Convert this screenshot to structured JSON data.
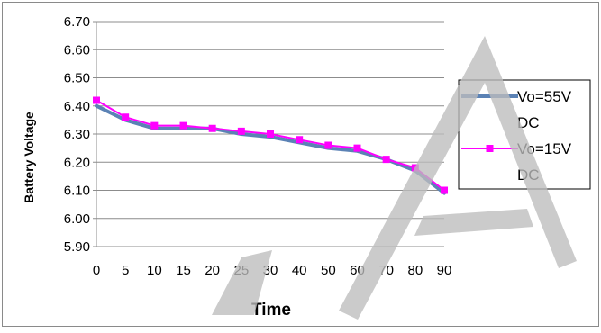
{
  "chart_data": {
    "type": "line",
    "title": "",
    "xlabel": "Time",
    "ylabel": "Battery Voltage",
    "x": [
      "0",
      "5",
      "10",
      "15",
      "20",
      "25",
      "30",
      "40",
      "50",
      "60",
      "70",
      "80",
      "90"
    ],
    "ylim": [
      5.9,
      6.7
    ],
    "yticks": [
      "5.90",
      "6.00",
      "6.10",
      "6.20",
      "6.30",
      "6.40",
      "6.50",
      "6.60",
      "6.70"
    ],
    "grid": true,
    "legend_position": "right",
    "series": [
      {
        "name": "Vo=55V DC",
        "legend_lines": [
          "Vo=55V",
          "DC"
        ],
        "color": "#5b82b5",
        "marker": "none",
        "values": [
          6.4,
          6.35,
          6.32,
          6.32,
          6.32,
          6.3,
          6.29,
          6.27,
          6.25,
          6.24,
          6.21,
          6.17,
          6.09
        ]
      },
      {
        "name": "Vo=15V DC",
        "legend_lines": [
          "Vo=15V",
          "DC"
        ],
        "color": "#ff00ff",
        "marker": "square",
        "values": [
          6.42,
          6.36,
          6.33,
          6.33,
          6.32,
          6.31,
          6.3,
          6.28,
          6.26,
          6.25,
          6.21,
          6.18,
          6.1
        ]
      }
    ]
  }
}
